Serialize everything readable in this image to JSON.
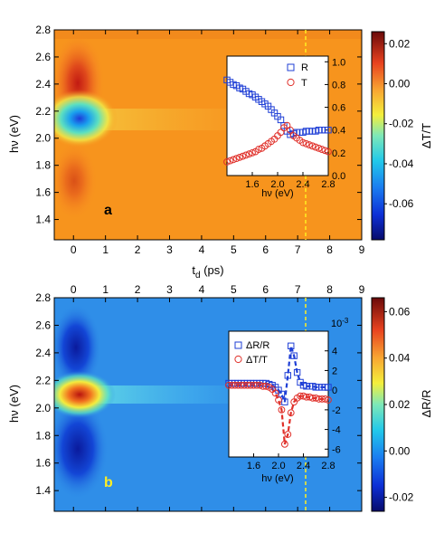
{
  "chart_data": [
    {
      "type": "heatmap",
      "panel_label": "a",
      "xlabel": "t",
      "xlabel_sub": "d",
      "xlabel_unit": " (ps)",
      "ylabel": "hν (eV)",
      "xlim": [
        -0.6,
        9
      ],
      "ylim": [
        1.25,
        2.8
      ],
      "xticks": [
        "0",
        "1",
        "2",
        "3",
        "4",
        "5",
        "6",
        "7",
        "8",
        "9"
      ],
      "yticks": [
        "1.4",
        "1.6",
        "1.8",
        "2.0",
        "2.2",
        "2.4",
        "2.6",
        "2.8"
      ],
      "colorbar": {
        "label": "ΔT/T",
        "range": [
          -0.078,
          0.026
        ],
        "ticks": [
          "0.02",
          "0.00",
          "-0.02",
          "-0.04",
          "-0.06"
        ]
      },
      "marker_t": 7.2,
      "inset": {
        "type": "scatter",
        "xlabel": "hν (eV)",
        "xlim": [
          1.2,
          2.8
        ],
        "ylim": [
          0,
          1.05
        ],
        "xticks": [
          "1.6",
          "2.0",
          "2.4",
          "2.8"
        ],
        "yticks": [
          "0.0",
          "0.2",
          "0.4",
          "0.6",
          "0.8",
          "1.0"
        ],
        "series": [
          {
            "name": "R",
            "marker": "square",
            "color": "#1f3fd6",
            "x": [
              1.2,
              1.25,
              1.3,
              1.35,
              1.4,
              1.45,
              1.5,
              1.55,
              1.6,
              1.65,
              1.7,
              1.75,
              1.8,
              1.85,
              1.9,
              1.95,
              2.0,
              2.05,
              2.1,
              2.15,
              2.2,
              2.25,
              2.3,
              2.35,
              2.4,
              2.45,
              2.5,
              2.55,
              2.6,
              2.65,
              2.7,
              2.75,
              2.8
            ],
            "y": [
              0.84,
              0.82,
              0.8,
              0.79,
              0.77,
              0.76,
              0.74,
              0.72,
              0.71,
              0.69,
              0.67,
              0.65,
              0.63,
              0.61,
              0.58,
              0.55,
              0.52,
              0.49,
              0.44,
              0.39,
              0.36,
              0.37,
              0.38,
              0.38,
              0.38,
              0.39,
              0.39,
              0.39,
              0.39,
              0.4,
              0.4,
              0.4,
              0.4
            ]
          },
          {
            "name": "T",
            "marker": "circle",
            "color": "#e0302a",
            "x": [
              1.2,
              1.25,
              1.3,
              1.35,
              1.4,
              1.45,
              1.5,
              1.55,
              1.6,
              1.65,
              1.7,
              1.75,
              1.8,
              1.85,
              1.9,
              1.95,
              2.0,
              2.05,
              2.1,
              2.15,
              2.2,
              2.25,
              2.3,
              2.35,
              2.4,
              2.45,
              2.5,
              2.55,
              2.6,
              2.65,
              2.7,
              2.75,
              2.8
            ],
            "y": [
              0.12,
              0.13,
              0.14,
              0.15,
              0.16,
              0.17,
              0.18,
              0.19,
              0.2,
              0.21,
              0.23,
              0.24,
              0.26,
              0.28,
              0.3,
              0.32,
              0.35,
              0.38,
              0.42,
              0.44,
              0.4,
              0.35,
              0.33,
              0.31,
              0.29,
              0.28,
              0.27,
              0.26,
              0.25,
              0.24,
              0.23,
              0.22,
              0.21
            ]
          }
        ]
      }
    },
    {
      "type": "heatmap",
      "panel_label": "b",
      "ylabel": "hν (eV)",
      "xlim": [
        -0.6,
        9
      ],
      "ylim": [
        1.25,
        2.8
      ],
      "xticks": [
        "0",
        "1",
        "2",
        "3",
        "4",
        "5",
        "6",
        "7",
        "8",
        "9"
      ],
      "yticks": [
        "1.4",
        "1.6",
        "1.8",
        "2.0",
        "2.2",
        "2.4",
        "2.6",
        "2.8"
      ],
      "colorbar": {
        "label": "ΔR/R",
        "range": [
          -0.026,
          0.066
        ],
        "ticks": [
          "0.06",
          "0.04",
          "0.02",
          "0.00",
          "-0.02"
        ]
      },
      "marker_t": 7.2,
      "inset": {
        "type": "scatter",
        "xlabel": "hν (eV)",
        "xlim": [
          1.2,
          2.8
        ],
        "ylim": [
          -6.8,
          6
        ],
        "y_multiplier": "10",
        "y_multiplier_exp": "-3",
        "xticks": [
          "1.6",
          "2.0",
          "2.4",
          "2.8"
        ],
        "yticks": [
          "4",
          "2",
          "0",
          "-2",
          "-4",
          "-6"
        ],
        "series": [
          {
            "name": "ΔR/R",
            "marker": "square",
            "color": "#1f3fd6",
            "x": [
              1.2,
              1.25,
              1.3,
              1.35,
              1.4,
              1.45,
              1.5,
              1.55,
              1.6,
              1.65,
              1.7,
              1.75,
              1.8,
              1.85,
              1.9,
              1.95,
              2.0,
              2.05,
              2.1,
              2.15,
              2.2,
              2.25,
              2.3,
              2.35,
              2.4,
              2.45,
              2.5,
              2.55,
              2.6,
              2.65,
              2.7,
              2.75,
              2.8
            ],
            "y": [
              0.7,
              0.7,
              0.7,
              0.7,
              0.7,
              0.7,
              0.7,
              0.7,
              0.7,
              0.7,
              0.7,
              0.7,
              0.7,
              0.6,
              0.5,
              0.3,
              0.0,
              -0.4,
              -1.2,
              1.5,
              4.5,
              3.5,
              1.8,
              0.8,
              0.5,
              0.4,
              0.4,
              0.4,
              0.3,
              0.3,
              0.3,
              0.3,
              0.3
            ]
          },
          {
            "name": "ΔT/T",
            "marker": "circle",
            "color": "#e0302a",
            "x": [
              1.2,
              1.25,
              1.3,
              1.35,
              1.4,
              1.45,
              1.5,
              1.55,
              1.6,
              1.65,
              1.7,
              1.75,
              1.8,
              1.85,
              1.9,
              1.95,
              2.0,
              2.05,
              2.1,
              2.15,
              2.2,
              2.25,
              2.3,
              2.35,
              2.4,
              2.45,
              2.5,
              2.55,
              2.6,
              2.65,
              2.7,
              2.75,
              2.8
            ],
            "y": [
              0.5,
              0.5,
              0.5,
              0.5,
              0.5,
              0.5,
              0.5,
              0.5,
              0.5,
              0.5,
              0.5,
              0.4,
              0.4,
              0.3,
              0.1,
              -0.3,
              -1.0,
              -2.0,
              -5.5,
              -4.5,
              -2.3,
              -1.2,
              -0.8,
              -0.6,
              -0.6,
              -0.7,
              -0.7,
              -0.8,
              -0.8,
              -0.9,
              -0.9,
              -0.9,
              -1.0
            ]
          }
        ]
      }
    }
  ]
}
